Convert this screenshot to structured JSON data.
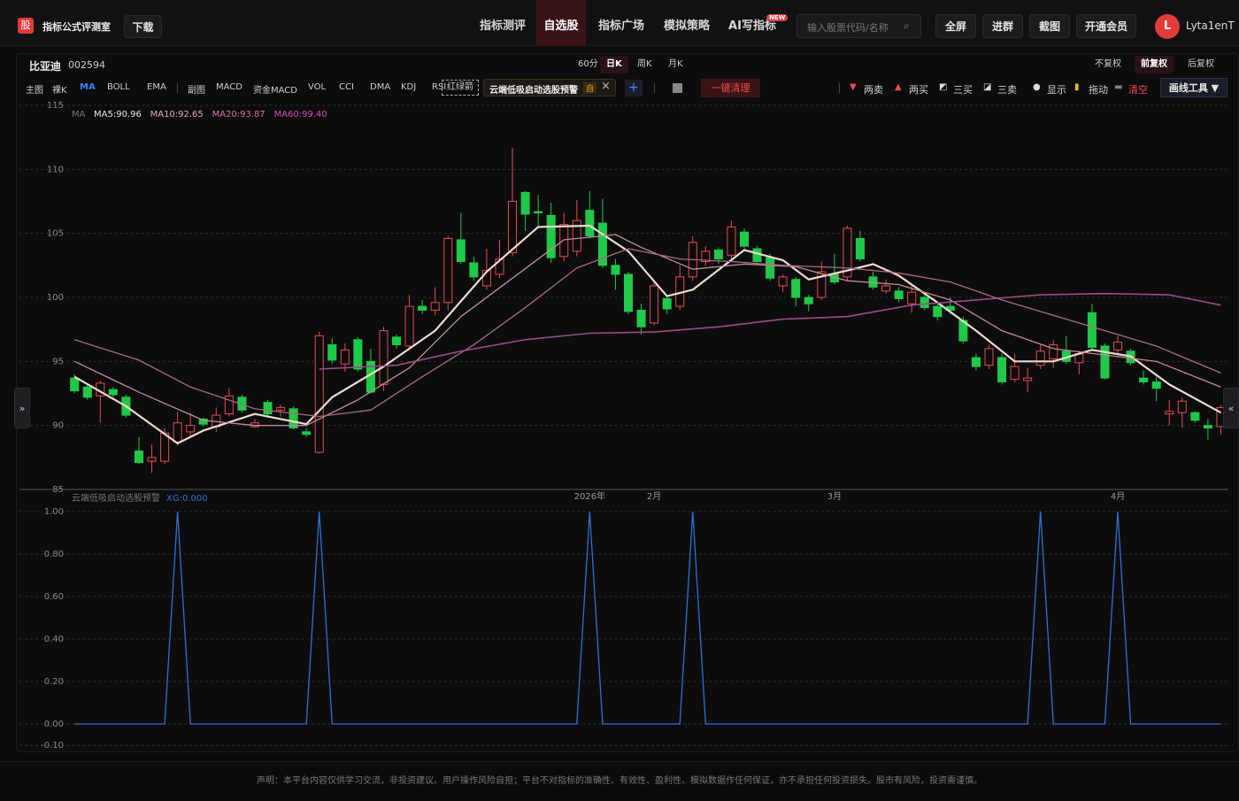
{
  "header": {
    "logo": "股",
    "title": "指标公式评测室",
    "download": "下载",
    "nav": [
      "指标测评",
      "自选股",
      "指标广场",
      "模拟策略",
      "AI写指标"
    ],
    "new_badge": "NEW",
    "search_placeholder": "输入股票代码/名称",
    "buttons": [
      "全屏",
      "进群",
      "截图",
      "开通会员"
    ],
    "avatar": "L",
    "user": "Lyta1enT"
  },
  "stock": {
    "name": "比亚迪",
    "code": "002594",
    "periods": [
      "60分",
      "日K",
      "周K",
      "月K"
    ],
    "adjust": [
      "不复权",
      "前复权",
      "后复权"
    ]
  },
  "toolbar": {
    "main_label": "主图",
    "main": [
      "裸K",
      "MA",
      "BOLL",
      "EMA"
    ],
    "sub_label": "副图",
    "sub": [
      "MACD",
      "资金MACD",
      "VOL",
      "CCI",
      "DMA",
      "KDJ",
      "RSI"
    ],
    "arrow": "红绿箭",
    "chip": "云端低吸启动选股预警",
    "chip_tag": "自",
    "plus": "+",
    "clear": "一键清理",
    "tools": [
      "两卖",
      "两买",
      "三买",
      "三卖",
      "显示",
      "拖动",
      "清空"
    ],
    "draw": "画线工具 ▼"
  },
  "side": {
    "left": "»",
    "right": "«"
  },
  "footer": "声明：本平台内容仅供学习交流，非投资建议。用户操作风险自担；平台不对指标的准确性、有效性、盈利性、模拟数据作任何保证，亦不承担任何投资损失。股市有风险，投资需谨慎。",
  "chart_data": [
    {
      "type": "candlestick",
      "legend_title": "MA",
      "up_color": "#e84a4a",
      "down_color": "#1fc94a",
      "xlim": [
        -4,
        90
      ],
      "ylim": [
        85,
        115
      ],
      "yticks": [
        85,
        90,
        95,
        100,
        105,
        110,
        115
      ],
      "grid": true,
      "xticks": [
        {
          "value": 40,
          "label": "2026年"
        },
        {
          "value": 45,
          "label": "2月"
        },
        {
          "value": 59,
          "label": "3月"
        },
        {
          "value": 81,
          "label": "4月"
        }
      ],
      "open": [
        93.7,
        93.0,
        92.3,
        92.8,
        92.2,
        88.0,
        87.2,
        87.2,
        88.7,
        89.5,
        90.5,
        89.9,
        90.9,
        92.2,
        89.9,
        91.8,
        91.2,
        91.3,
        89.5,
        87.9,
        96.3,
        94.8,
        96.7,
        95.0,
        93.2,
        96.9,
        96.2,
        99.3,
        99.0,
        99.6,
        104.5,
        102.7,
        100.9,
        101.8,
        103.5,
        108.2,
        106.7,
        106.4,
        103.2,
        103.6,
        106.8,
        105.8,
        102.5,
        101.8,
        99.0,
        98.0,
        99.9,
        99.3,
        101.6,
        102.8,
        103.7,
        103.3,
        105.1,
        103.8,
        103.1,
        100.9,
        101.4,
        100.0,
        100.0,
        101.8,
        101.6,
        104.6,
        101.6,
        100.5,
        100.5,
        99.5,
        100.0,
        99.3,
        99.3,
        98.2,
        95.3,
        94.7,
        95.3,
        93.6,
        93.5,
        94.7,
        95.2,
        95.8,
        94.9,
        98.8,
        96.2,
        95.9,
        95.8,
        93.7,
        93.4,
        90.9,
        91.0,
        91.0,
        90.0,
        89.9
      ],
      "high": [
        94.0,
        93.3,
        93.5,
        93.0,
        92.4,
        89.1,
        88.5,
        89.8,
        91.1,
        91.0,
        90.6,
        91.4,
        92.9,
        92.4,
        90.5,
        92.0,
        91.6,
        91.5,
        89.8,
        97.3,
        96.8,
        96.4,
        96.9,
        96.0,
        97.7,
        97.1,
        100.2,
        99.8,
        100.8,
        104.8,
        106.6,
        103.2,
        103.8,
        104.5,
        111.7,
        108.3,
        108.0,
        107.4,
        106.6,
        107.6,
        108.3,
        107.7,
        103.0,
        102.0,
        99.5,
        101.2,
        100.1,
        102.5,
        104.8,
        104.0,
        103.9,
        106.0,
        105.4,
        104.0,
        103.4,
        101.8,
        101.6,
        100.2,
        102.8,
        103.4,
        105.6,
        105.2,
        102.0,
        101.4,
        100.8,
        101.0,
        100.2,
        99.6,
        100.0,
        98.5,
        95.6,
        96.3,
        95.6,
        95.6,
        94.5,
        96.3,
        96.7,
        97.0,
        95.8,
        99.5,
        96.4,
        97.0,
        96.0,
        94.3,
        93.8,
        92.0,
        92.2,
        91.1,
        90.5,
        91.6
      ],
      "low": [
        92.5,
        92.0,
        90.2,
        92.2,
        90.6,
        87.0,
        86.3,
        87.0,
        88.4,
        89.2,
        89.9,
        89.5,
        90.7,
        91.0,
        89.8,
        90.6,
        90.7,
        89.7,
        89.1,
        87.8,
        94.8,
        94.2,
        94.2,
        92.5,
        92.7,
        96.0,
        96.0,
        98.7,
        98.6,
        99.0,
        102.6,
        101.3,
        100.6,
        101.5,
        103.2,
        105.2,
        105.5,
        102.7,
        102.8,
        103.2,
        104.6,
        102.3,
        100.6,
        98.7,
        97.1,
        97.8,
        98.7,
        99.0,
        101.3,
        102.5,
        102.6,
        103.0,
        103.8,
        102.6,
        101.3,
        100.4,
        99.3,
        98.9,
        99.8,
        101.0,
        101.3,
        102.8,
        100.6,
        100.3,
        99.6,
        98.8,
        99.0,
        98.2,
        98.7,
        96.4,
        94.3,
        94.4,
        93.2,
        93.4,
        92.6,
        94.4,
        94.5,
        94.8,
        94.0,
        95.9,
        93.6,
        95.6,
        94.7,
        93.2,
        91.9,
        90.0,
        89.8,
        90.2,
        88.9,
        89.3
      ],
      "close": [
        92.7,
        92.2,
        93.3,
        92.4,
        90.8,
        87.1,
        87.5,
        89.4,
        90.2,
        90.0,
        90.1,
        90.8,
        92.3,
        91.2,
        90.2,
        90.9,
        91.4,
        89.8,
        89.3,
        97.0,
        95.1,
        95.9,
        94.4,
        92.6,
        97.4,
        96.3,
        99.3,
        99.0,
        99.6,
        104.6,
        102.8,
        101.6,
        102.1,
        103.0,
        107.5,
        106.5,
        106.6,
        103.1,
        105.7,
        106.0,
        104.8,
        102.5,
        101.8,
        98.9,
        97.7,
        100.9,
        99.1,
        101.6,
        104.3,
        103.6,
        103.0,
        105.5,
        104.0,
        102.8,
        101.5,
        101.6,
        100.0,
        99.5,
        102.0,
        101.2,
        105.4,
        103.0,
        100.8,
        100.9,
        99.9,
        100.4,
        99.2,
        98.5,
        99.0,
        96.6,
        94.6,
        96.0,
        93.4,
        94.6,
        93.7,
        95.8,
        96.3,
        95.0,
        95.6,
        96.1,
        93.7,
        96.5,
        94.9,
        93.4,
        92.9,
        91.1,
        91.9,
        90.4,
        89.8,
        91.4
      ],
      "series": [
        {
          "name": "MA5:90.96",
          "color": "#ecdccb",
          "label_color": "#e8e8e8",
          "width": 2.2,
          "x": [
            0,
            4,
            8,
            10,
            14,
            18,
            20,
            24,
            28,
            32,
            36,
            40,
            43,
            46,
            48,
            52,
            55,
            57,
            60,
            62,
            64,
            67,
            70,
            73,
            76,
            79,
            82,
            85,
            89
          ],
          "values": [
            93.8,
            91.5,
            88.6,
            89.6,
            90.9,
            90.1,
            92.2,
            94.6,
            97.4,
            102,
            105.5,
            105.6,
            103.6,
            100.1,
            100.6,
            103.7,
            102.9,
            101.4,
            102.1,
            102.6,
            101.7,
            99.6,
            97.4,
            95.0,
            95.0,
            95.9,
            95.4,
            93.2,
            91.0
          ]
        },
        {
          "name": "MA10:92.65",
          "color": "#c48c96",
          "label_color": "#e8a8b8",
          "width": 1.3,
          "x": [
            0,
            5,
            10,
            14,
            18,
            22,
            26,
            30,
            34,
            38,
            42,
            44,
            48,
            52,
            56,
            60,
            64,
            68,
            72,
            76,
            80,
            84,
            89
          ],
          "values": [
            95.0,
            92.6,
            90.4,
            90.0,
            90.0,
            92.0,
            94.5,
            98.5,
            101.5,
            104.5,
            104.9,
            103.9,
            102.2,
            102.6,
            102.4,
            101.3,
            101.0,
            99.8,
            97.4,
            96.0,
            95.5,
            95.0,
            93.0
          ]
        },
        {
          "name": "MA20:93.87",
          "color": "#a86a86",
          "label_color": "#e070a8",
          "width": 1.3,
          "x": [
            0,
            5,
            9,
            14,
            19,
            23,
            27,
            31,
            35,
            39,
            43,
            47,
            51,
            55,
            60,
            64,
            68,
            72,
            76,
            80,
            84,
            89
          ],
          "values": [
            96.7,
            95.1,
            93.0,
            91.3,
            90.7,
            91.2,
            93.8,
            96.3,
            99.2,
            102.3,
            103.8,
            103.0,
            102.8,
            102.5,
            102.3,
            101.9,
            101.2,
            99.8,
            98.6,
            97.4,
            96.2,
            94.1
          ]
        },
        {
          "name": "MA60:99.40",
          "color": "#9a4c8a",
          "label_color": "#d050b8",
          "width": 1.6,
          "x": [
            19,
            25,
            30,
            35,
            40,
            45,
            50,
            55,
            60,
            65,
            70,
            75,
            80,
            85,
            89
          ],
          "values": [
            94.4,
            94.7,
            95.8,
            96.7,
            97.2,
            97.3,
            97.7,
            98.3,
            98.5,
            99.4,
            99.8,
            100.2,
            100.3,
            100.2,
            99.4
          ]
        }
      ]
    },
    {
      "type": "line",
      "title": "云端低吸启动选股预警",
      "xlim": [
        -4,
        90
      ],
      "ylim": [
        -0.1,
        1.0
      ],
      "grid": true,
      "yticks": [
        {
          "value": 1.0,
          "label": "1.00"
        },
        {
          "value": 0.8,
          "label": "0.80"
        },
        {
          "value": 0.6,
          "label": "0.60"
        },
        {
          "value": 0.4,
          "label": "0.40"
        },
        {
          "value": 0.2,
          "label": "0.20"
        },
        {
          "value": 0,
          "label": "0.00"
        },
        {
          "value": -0.1,
          "label": "-0.10"
        }
      ],
      "series": [
        {
          "name": "XG:0.000",
          "color": "#2f6fd8",
          "values": [
            0,
            0,
            0,
            0,
            0,
            0,
            0,
            0,
            1,
            0,
            0,
            0,
            0,
            0,
            0,
            0,
            0,
            0,
            0,
            1,
            0,
            0,
            0,
            0,
            0,
            0,
            0,
            0,
            0,
            0,
            0,
            0,
            0,
            0,
            0,
            0,
            0,
            0,
            0,
            0,
            1,
            0,
            0,
            0,
            0,
            0,
            0,
            0,
            1,
            0,
            0,
            0,
            0,
            0,
            0,
            0,
            0,
            0,
            0,
            0,
            0,
            0,
            0,
            0,
            0,
            0,
            0,
            0,
            0,
            0,
            0,
            0,
            0,
            0,
            0,
            1,
            0,
            0,
            0,
            0,
            0,
            1,
            0,
            0,
            0,
            0,
            0,
            0,
            0,
            0
          ]
        }
      ]
    }
  ]
}
